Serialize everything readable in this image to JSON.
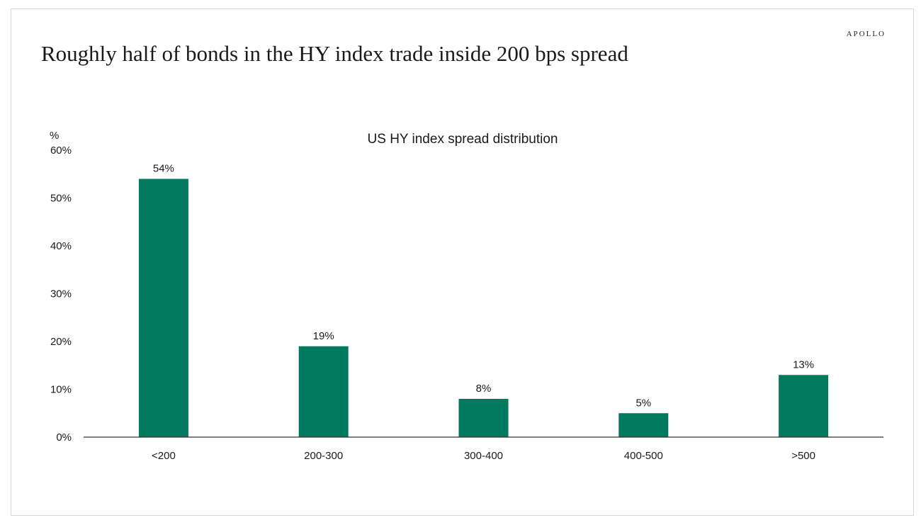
{
  "brand": "APOLLO",
  "headline": "Roughly half of bonds in the HY index trade inside 200 bps spread",
  "chart_data": {
    "type": "bar",
    "title": "US HY index spread distribution",
    "ylabel": "%",
    "xlabel": "",
    "categories": [
      "<200",
      "200-300",
      "300-400",
      "400-500",
      ">500"
    ],
    "values": [
      54,
      19,
      8,
      5,
      13
    ],
    "data_labels": [
      "54%",
      "19%",
      "8%",
      "5%",
      "13%"
    ],
    "ylim": [
      0,
      60
    ],
    "yticks": [
      0,
      10,
      20,
      30,
      40,
      50,
      60
    ],
    "ytick_labels": [
      "0%",
      "10%",
      "20%",
      "30%",
      "40%",
      "50%",
      "60%"
    ],
    "grid": false,
    "legend": "none",
    "bar_color": "#007A5E"
  }
}
